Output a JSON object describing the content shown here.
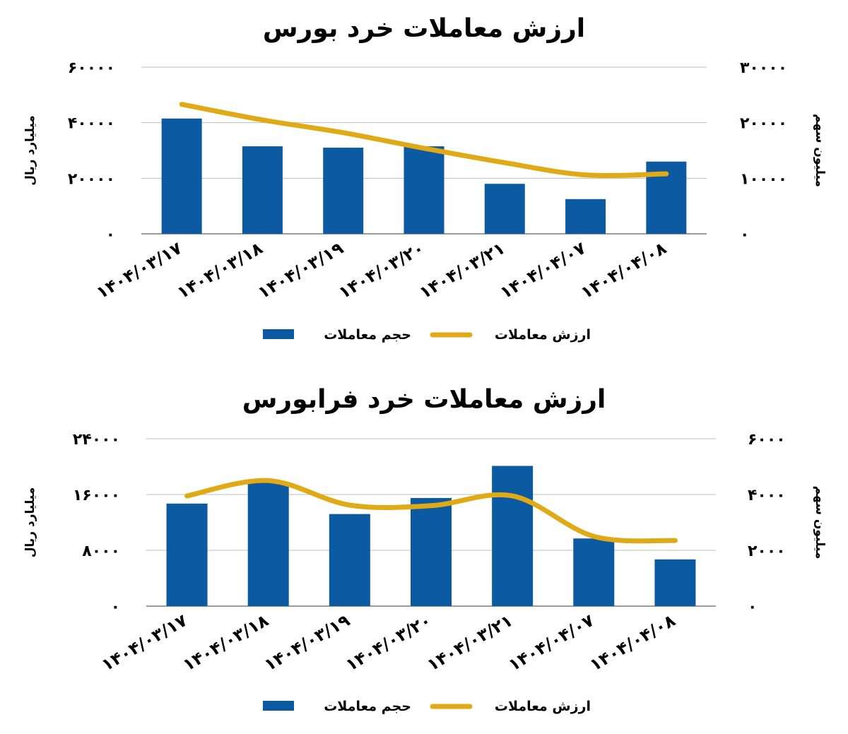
{
  "chart_data": [
    {
      "type": "bar",
      "title": "ارزش معاملات خرد بورس",
      "categories": [
        "۱۴۰۴/۰۳/۱۷",
        "۱۴۰۴/۰۳/۱۸",
        "۱۴۰۴/۰۳/۱۹",
        "۱۴۰۴/۰۳/۲۰",
        "۱۴۰۴/۰۳/۲۱",
        "۱۴۰۴/۰۴/۰۷",
        "۱۴۰۴/۰۴/۰۸"
      ],
      "y_left": {
        "label": "میلیارد ریال",
        "ticks": [
          "۰",
          "۲۰۰۰۰",
          "۴۰۰۰۰",
          "۶۰۰۰۰"
        ],
        "ylim": [
          0,
          60000
        ]
      },
      "y_right": {
        "label": "میلیون سهم",
        "ticks": [
          "۰",
          "۱۰۰۰۰",
          "۲۰۰۰۰",
          "۳۰۰۰۰"
        ],
        "ylim": [
          0,
          30000
        ]
      },
      "series": [
        {
          "name": "حجم معاملات",
          "kind": "bar",
          "axis": "left",
          "color": "#0b5aa2",
          "values": [
            41500,
            31500,
            31000,
            31500,
            18000,
            12500,
            26000
          ]
        },
        {
          "name": "ارزش معاملات",
          "kind": "line",
          "axis": "right",
          "color": "#e0aa17",
          "smooth": true,
          "values": [
            23300,
            20500,
            18200,
            15400,
            12800,
            10600,
            10800
          ]
        }
      ],
      "grid": true,
      "legend_position": "bottom"
    },
    {
      "type": "bar",
      "title": "ارزش معاملات خرد فرابورس",
      "categories": [
        "۱۴۰۴/۰۳/۱۷",
        "۱۴۰۴/۰۳/۱۸",
        "۱۴۰۴/۰۳/۱۹",
        "۱۴۰۴/۰۳/۲۰",
        "۱۴۰۴/۰۳/۲۱",
        "۱۴۰۴/۰۴/۰۷",
        "۱۴۰۴/۰۴/۰۸"
      ],
      "y_left": {
        "label": "میلیارد ریال",
        "ticks": [
          "۰",
          "۸۰۰۰",
          "۱۶۰۰۰",
          "۲۴۰۰۰"
        ],
        "ylim": [
          0,
          24000
        ]
      },
      "y_right": {
        "label": "میلیون سهم",
        "ticks": [
          "۰",
          "۲۰۰۰",
          "۴۰۰۰",
          "۶۰۰۰"
        ],
        "ylim": [
          0,
          6000
        ]
      },
      "series": [
        {
          "name": "حجم معاملات",
          "kind": "bar",
          "axis": "left",
          "color": "#0b5aa2",
          "values": [
            14700,
            17800,
            13200,
            15500,
            20100,
            9700,
            6700
          ]
        },
        {
          "name": "ارزش معاملات",
          "kind": "line",
          "axis": "right",
          "color": "#e0aa17",
          "smooth": true,
          "values": [
            3950,
            4500,
            3620,
            3600,
            3950,
            2500,
            2350
          ]
        }
      ],
      "grid": true,
      "legend_position": "bottom"
    }
  ]
}
